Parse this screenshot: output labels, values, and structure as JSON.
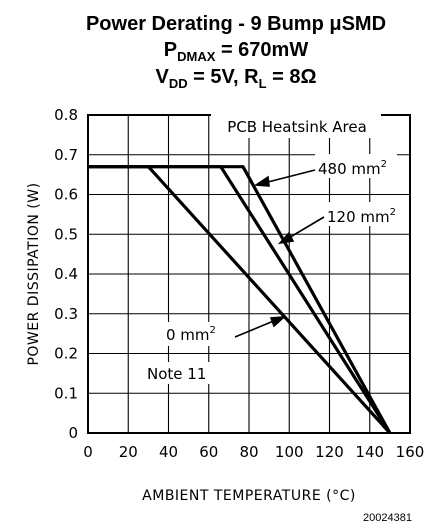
{
  "chart_data": {
    "type": "line",
    "title": {
      "line1": "Power Derating - 9 Bump μSMD",
      "line2_main": "P",
      "line2_sub": "DMAX",
      "line2_rest": " = 670mW",
      "line3_v": "V",
      "line3_v_sub": "DD",
      "line3_mid": " = 5V, R",
      "line3_r_sub": "L",
      "line3_rest": " = 8Ω"
    },
    "xlabel": "AMBIENT TEMPERATURE (°C)",
    "ylabel": "POWER DISSIPATION (W)",
    "xlim": [
      0,
      160
    ],
    "ylim": [
      0,
      0.8
    ],
    "x_ticks": [
      "0",
      "20",
      "40",
      "60",
      "80",
      "100",
      "120",
      "140",
      "160"
    ],
    "y_ticks": [
      "0",
      "0.1",
      "0.2",
      "0.3",
      "0.4",
      "0.5",
      "0.6",
      "0.7",
      "0.8"
    ],
    "grid": true,
    "legend_title": "PCB Heatsink Area",
    "series": [
      {
        "name": "480 mm²",
        "label_main": "480 mm",
        "label_sup": "2",
        "x": [
          0,
          77,
          150
        ],
        "y": [
          0.67,
          0.67,
          0
        ]
      },
      {
        "name": "120 mm²",
        "label_main": "120 mm",
        "label_sup": "2",
        "x": [
          0,
          66,
          150
        ],
        "y": [
          0.67,
          0.67,
          0
        ]
      },
      {
        "name": "0 mm²",
        "label_main": "0 mm",
        "label_sup": "2",
        "x": [
          0,
          30,
          150
        ],
        "y": [
          0.67,
          0.67,
          0
        ]
      }
    ],
    "note": "Note 11"
  },
  "figure_id": "20024381"
}
